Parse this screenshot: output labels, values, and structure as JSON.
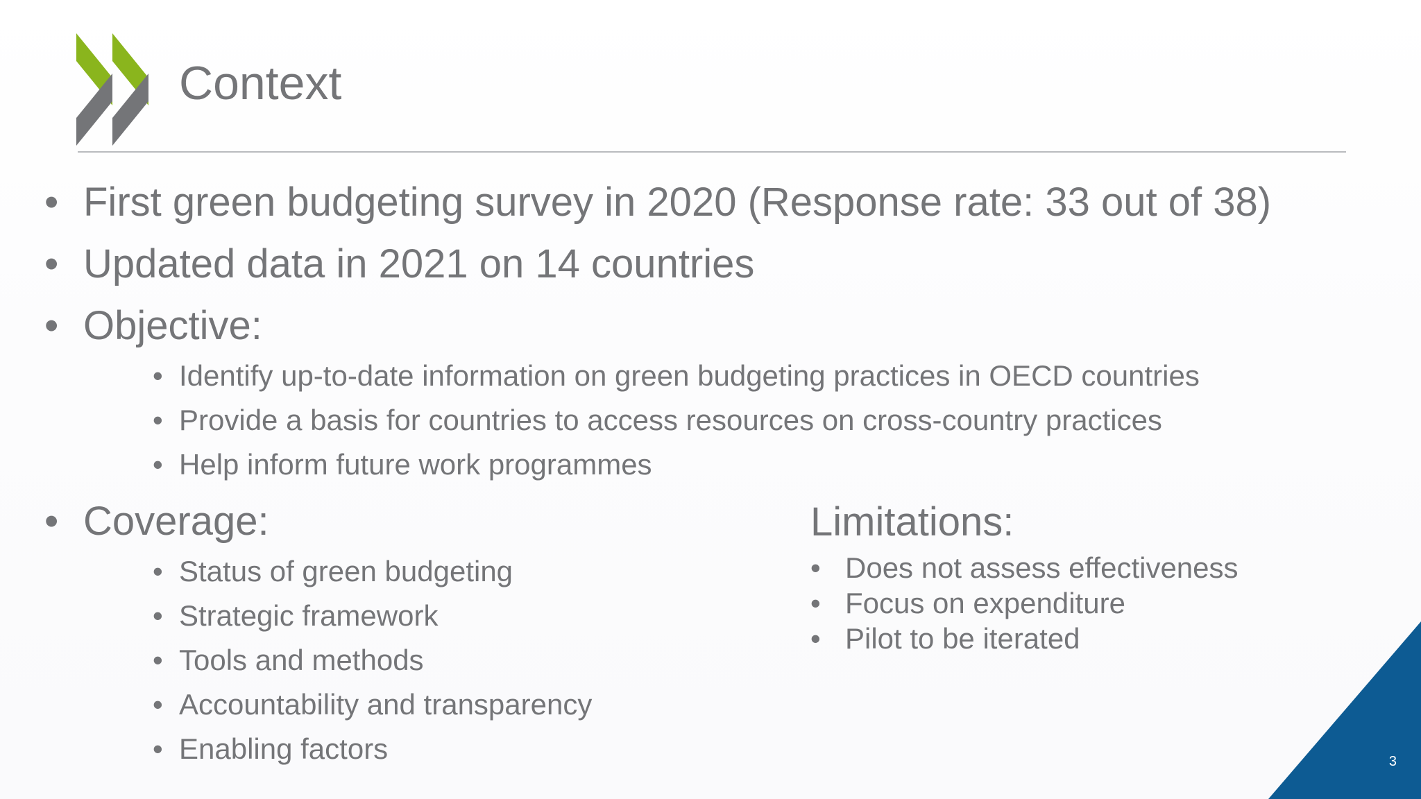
{
  "slide": {
    "title": "Context",
    "bullets": [
      "First green budgeting survey in 2020 (Response rate: 33 out of 38)",
      "Updated data in 2021 on 14 countries",
      "Objective:"
    ],
    "objective_items": [
      "Identify up-to-date information on green budgeting practices in OECD countries",
      "Provide a basis for countries to access resources on cross-country practices",
      "Help inform future work programmes"
    ],
    "coverage_label": "Coverage:",
    "coverage_items": [
      "Status of green budgeting",
      "Strategic framework",
      "Tools and methods",
      "Accountability and transparency",
      "Enabling factors"
    ],
    "limitations_label": "Limitations:",
    "limitations_items": [
      "Does not assess effectiveness",
      "Focus on expenditure",
      "Pilot to be iterated"
    ],
    "bullet_glyph": "•",
    "page_number": "3"
  },
  "colors": {
    "text": "#747578",
    "logo_green": "#8ab51d",
    "logo_gray": "#747578",
    "corner_blue": "#0d5b93"
  },
  "icons": {
    "logo": "oecd-chevron-logo"
  }
}
